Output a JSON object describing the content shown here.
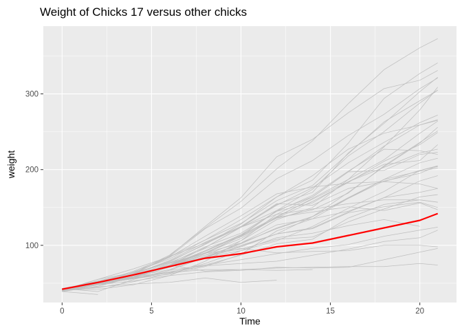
{
  "chart_data": {
    "type": "line",
    "title": "Weight of Chicks 17 versus other chicks",
    "xlabel": "Time",
    "ylabel": "weight",
    "xlim": [
      -1.05,
      22.05
    ],
    "ylim": [
      24.5,
      389.5
    ],
    "x_ticks": [
      0,
      5,
      10,
      15,
      20
    ],
    "y_ticks": [
      100,
      200,
      300
    ],
    "grid": true,
    "legend": "none",
    "colors": {
      "panel_background": "#ebebeb",
      "grid_major": "#ffffff",
      "other_chicks": "#bebebe",
      "highlight": "#ff0000"
    },
    "highlight_series": {
      "name": "17",
      "x": [
        0,
        2,
        4,
        6,
        8,
        10,
        12,
        14,
        16,
        18,
        20,
        21
      ],
      "values": [
        42,
        51,
        61,
        72,
        83,
        89,
        98,
        103,
        113,
        123,
        133,
        142
      ]
    },
    "series": [
      {
        "x": [
          0,
          2,
          4,
          6,
          8,
          10,
          12,
          14,
          16,
          18,
          20,
          21
        ],
        "values": [
          42,
          51,
          59,
          64,
          76,
          93,
          106,
          125,
          149,
          171,
          199,
          205
        ]
      },
      {
        "x": [
          0,
          2,
          4,
          6,
          8,
          10,
          12,
          14,
          16,
          18,
          20,
          21
        ],
        "values": [
          40,
          49,
          58,
          72,
          84,
          103,
          122,
          138,
          162,
          187,
          209,
          215
        ]
      },
      {
        "x": [
          0,
          2,
          4,
          6,
          8,
          10,
          12,
          14,
          16,
          18,
          20,
          21
        ],
        "values": [
          43,
          39,
          55,
          67,
          84,
          99,
          115,
          138,
          163,
          187,
          198,
          202
        ]
      },
      {
        "x": [
          0,
          2,
          4,
          6,
          8,
          10,
          12,
          14,
          16,
          18,
          20,
          21
        ],
        "values": [
          42,
          49,
          56,
          67,
          74,
          87,
          102,
          108,
          136,
          154,
          160,
          157
        ]
      },
      {
        "x": [
          0,
          2,
          4,
          6,
          8,
          10,
          12,
          14,
          16,
          18,
          20,
          21
        ],
        "values": [
          41,
          42,
          48,
          60,
          79,
          106,
          141,
          164,
          197,
          199,
          220,
          223
        ]
      },
      {
        "x": [
          0,
          2,
          4,
          6,
          8,
          10,
          12,
          14,
          16,
          18,
          20,
          21
        ],
        "values": [
          41,
          49,
          59,
          74,
          97,
          124,
          141,
          148,
          155,
          160,
          160,
          157
        ]
      },
      {
        "x": [
          0,
          2,
          4,
          6,
          8,
          10,
          12,
          14,
          16,
          18,
          20,
          21
        ],
        "values": [
          41,
          49,
          57,
          71,
          89,
          112,
          146,
          174,
          218,
          250,
          288,
          305
        ]
      },
      {
        "x": [
          0,
          2,
          4,
          6,
          8,
          10,
          12,
          14,
          16,
          18,
          20
        ],
        "values": [
          42,
          50,
          61,
          71,
          84,
          93,
          110,
          116,
          126,
          134,
          125
        ]
      },
      {
        "x": [
          0,
          2,
          4,
          6,
          8,
          10,
          12,
          14,
          16,
          18,
          20,
          21
        ],
        "values": [
          42,
          51,
          59,
          68,
          85,
          96,
          90,
          92,
          93,
          100,
          100,
          98
        ]
      },
      {
        "x": [
          0,
          2,
          4,
          6,
          8,
          10,
          12,
          14,
          16,
          18,
          20,
          21
        ],
        "values": [
          41,
          44,
          52,
          63,
          74,
          81,
          89,
          96,
          101,
          112,
          120,
          124
        ]
      },
      {
        "x": [
          0,
          2,
          4,
          6,
          8,
          10,
          12,
          14,
          16,
          18,
          20,
          21
        ],
        "values": [
          43,
          51,
          63,
          84,
          112,
          139,
          168,
          177,
          182,
          184,
          181,
          175
        ]
      },
      {
        "x": [
          0,
          2,
          4,
          6,
          8,
          10,
          12,
          14,
          16,
          18,
          20,
          21
        ],
        "values": [
          41,
          49,
          56,
          62,
          72,
          88,
          119,
          135,
          162,
          185,
          195,
          205
        ]
      },
      {
        "x": [
          0,
          2,
          4,
          6,
          8,
          10,
          12,
          14,
          16,
          18,
          20,
          21
        ],
        "values": [
          41,
          48,
          53,
          60,
          65,
          67,
          71,
          70,
          71,
          81,
          91,
          96
        ]
      },
      {
        "x": [
          0,
          2,
          4,
          6,
          8,
          10,
          12,
          14,
          16,
          18,
          20,
          21
        ],
        "values": [
          41,
          49,
          62,
          79,
          101,
          128,
          164,
          192,
          227,
          248,
          259,
          266
        ]
      },
      {
        "x": [
          0,
          2,
          4,
          6,
          8,
          10,
          12,
          14
        ],
        "values": [
          41,
          49,
          56,
          64,
          68,
          68,
          67,
          68
        ]
      },
      {
        "x": [
          0,
          2,
          4,
          6,
          8,
          10,
          12
        ],
        "values": [
          41,
          45,
          49,
          51,
          57,
          51,
          54
        ]
      },
      {
        "x": [
          0,
          2
        ],
        "values": [
          39,
          35
        ]
      },
      {
        "x": [
          0,
          2,
          4,
          6,
          8,
          10,
          12,
          14,
          16,
          18,
          20,
          21
        ],
        "values": [
          41,
          48,
          57,
          65,
          73,
          76,
          79,
          87,
          95,
          105,
          110,
          120
        ]
      },
      {
        "x": [
          0,
          2,
          4,
          6,
          8,
          10,
          12,
          14,
          16,
          18,
          20,
          21
        ],
        "values": [
          40,
          50,
          62,
          86,
          125,
          163,
          217,
          240,
          275,
          307,
          318,
          331
        ]
      },
      {
        "x": [
          0,
          2,
          4,
          6,
          8,
          10,
          12,
          14,
          16,
          18,
          20,
          21
        ],
        "values": [
          41,
          55,
          64,
          77,
          90,
          95,
          108,
          111,
          131,
          148,
          164,
          167
        ]
      },
      {
        "x": [
          0,
          2,
          4,
          6,
          8,
          10,
          12,
          14,
          16,
          18,
          20,
          21
        ],
        "values": [
          43,
          52,
          61,
          73,
          90,
          103,
          127,
          135,
          145,
          163,
          170,
          175
        ]
      },
      {
        "x": [
          0,
          2,
          4,
          6,
          8,
          10,
          12,
          14,
          16,
          18,
          20,
          21
        ],
        "values": [
          42,
          52,
          58,
          74,
          66,
          68,
          70,
          71,
          72,
          72,
          76,
          74
        ]
      },
      {
        "x": [
          0,
          2,
          4,
          6,
          8,
          10,
          12,
          14,
          16,
          18,
          20,
          21
        ],
        "values": [
          40,
          49,
          62,
          78,
          102,
          124,
          146,
          164,
          197,
          231,
          259,
          265
        ]
      },
      {
        "x": [
          0,
          2,
          4,
          6,
          8,
          10,
          12,
          14,
          16,
          18,
          20,
          21
        ],
        "values": [
          42,
          48,
          57,
          74,
          93,
          114,
          136,
          147,
          169,
          205,
          236,
          251
        ]
      },
      {
        "x": [
          0,
          2,
          4,
          6,
          8,
          10,
          12,
          14,
          16,
          18,
          20,
          21
        ],
        "values": [
          39,
          46,
          58,
          73,
          87,
          100,
          115,
          123,
          144,
          163,
          185,
          192
        ]
      },
      {
        "x": [
          0,
          2,
          4,
          6,
          8,
          10,
          12,
          14,
          16,
          18,
          20,
          21
        ],
        "values": [
          39,
          46,
          58,
          73,
          92,
          114,
          145,
          156,
          184,
          207,
          212,
          233
        ]
      },
      {
        "x": [
          0,
          2,
          4,
          6,
          8,
          10,
          12,
          14,
          16,
          18,
          20,
          21
        ],
        "values": [
          39,
          48,
          59,
          74,
          87,
          106,
          134,
          150,
          187,
          230,
          279,
          309
        ]
      },
      {
        "x": [
          0,
          2,
          4,
          6,
          8,
          10,
          12,
          14,
          16,
          18,
          20,
          21
        ],
        "values": [
          42,
          48,
          59,
          72,
          85,
          98,
          115,
          122,
          143,
          151,
          157,
          150
        ]
      },
      {
        "x": [
          0,
          2,
          4,
          6,
          8,
          10,
          12,
          14,
          16,
          18,
          20,
          21
        ],
        "values": [
          42,
          53,
          62,
          73,
          85,
          102,
          123,
          138,
          170,
          204,
          235,
          256
        ]
      },
      {
        "x": [
          0,
          2,
          4,
          6,
          8,
          10,
          12,
          14,
          16,
          18,
          20,
          21
        ],
        "values": [
          41,
          49,
          65,
          82,
          107,
          129,
          159,
          179,
          221,
          263,
          291,
          305
        ]
      },
      {
        "x": [
          0,
          2,
          4,
          6,
          8,
          10,
          12,
          14,
          16,
          18,
          20,
          21
        ],
        "values": [
          39,
          50,
          63,
          77,
          96,
          111,
          137,
          144,
          151,
          146,
          156,
          147
        ]
      },
      {
        "x": [
          0,
          2,
          4,
          6,
          8,
          10,
          12,
          14,
          16,
          18,
          20,
          21
        ],
        "values": [
          41,
          49,
          63,
          85,
          107,
          134,
          164,
          186,
          235,
          294,
          327,
          341
        ]
      },
      {
        "x": [
          0,
          2,
          4,
          6,
          8,
          10,
          12,
          14,
          16,
          18,
          20,
          21
        ],
        "values": [
          41,
          53,
          64,
          87,
          123,
          158,
          201,
          238,
          287,
          332,
          361,
          373
        ]
      },
      {
        "x": [
          0,
          2,
          4,
          6,
          8,
          10,
          12,
          14,
          16,
          18,
          20,
          21
        ],
        "values": [
          39,
          48,
          61,
          76,
          98,
          116,
          145,
          166,
          198,
          227,
          225,
          220
        ]
      },
      {
        "x": [
          0,
          2,
          4,
          6,
          8,
          10,
          12,
          14,
          16,
          18,
          20,
          21
        ],
        "values": [
          39,
          48,
          57,
          76,
          90,
          109,
          137,
          162,
          187,
          213,
          248,
          264
        ]
      },
      {
        "x": [
          0,
          2,
          4,
          6,
          8,
          10,
          12,
          14,
          16,
          18,
          20,
          21
        ],
        "values": [
          39,
          49,
          59,
          74,
          97,
          124,
          153,
          176,
          209,
          236,
          262,
          272
        ]
      },
      {
        "x": [
          0,
          2,
          4,
          6,
          8,
          10,
          12,
          14,
          16,
          18,
          20,
          21
        ],
        "values": [
          41,
          48,
          59,
          74,
          90,
          112,
          136,
          158,
          183,
          211,
          233,
          249
        ]
      },
      {
        "x": [
          0,
          2,
          4,
          6,
          8,
          10,
          12,
          14,
          16,
          18,
          20,
          21
        ],
        "values": [
          41,
          49,
          59,
          74,
          92,
          113,
          138,
          161,
          184,
          203,
          222,
          227
        ]
      },
      {
        "x": [
          0,
          2,
          4,
          6,
          8,
          10,
          12,
          14,
          16,
          18,
          20,
          21
        ],
        "values": [
          42,
          51,
          66,
          85,
          103,
          124,
          155,
          153,
          175,
          184,
          199,
          204
        ]
      },
      {
        "x": [
          0,
          2,
          4,
          6,
          8,
          10,
          12,
          14,
          16,
          18,
          20,
          21
        ],
        "values": [
          42,
          50,
          62,
          80,
          104,
          125,
          154,
          170,
          222,
          261,
          303,
          322
        ]
      },
      {
        "x": [
          0,
          2,
          4,
          6,
          8,
          10,
          12,
          14,
          16,
          18,
          20,
          21
        ],
        "values": [
          40,
          55,
          69,
          85,
          122,
          149,
          188,
          212,
          245,
          273,
          307,
          321
        ]
      }
    ]
  }
}
